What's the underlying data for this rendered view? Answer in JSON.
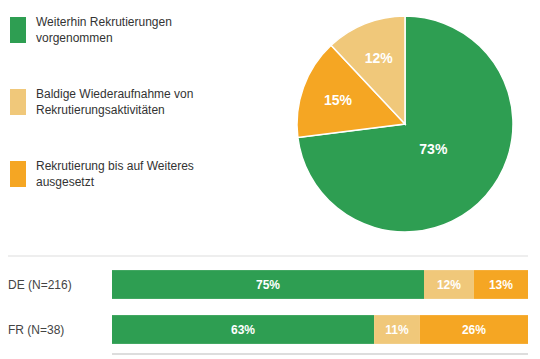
{
  "chart_data": [
    {
      "type": "pie",
      "values": [
        73,
        15,
        12
      ],
      "value_labels": [
        "73%",
        "15%",
        "12%"
      ],
      "colors": [
        "#2e9e52",
        "#f5a623",
        "#f0c87a"
      ],
      "data_labels": true
    },
    {
      "type": "bar",
      "orientation": "horizontal",
      "stacked": true,
      "categories": [
        "DE (N=216)",
        "FR (N=38)"
      ],
      "series": [
        {
          "name": "Weiterhin Rekrutierungen\nvorgenommen",
          "color": "#2e9e52",
          "values": [
            75,
            63
          ],
          "value_labels": [
            "75%",
            "63%"
          ]
        },
        {
          "name": "Baldige Wiederaufnahme von\nRekrutierungsaktivitäten",
          "color": "#f0c87a",
          "values": [
            12,
            11
          ],
          "value_labels": [
            "12%",
            "11%"
          ]
        },
        {
          "name": "Rekrutierung bis auf Weiteres\nausgesetzt",
          "color": "#f5a623",
          "values": [
            13,
            26
          ],
          "value_labels": [
            "13%",
            "26%"
          ]
        }
      ],
      "xlim": [
        0,
        100
      ],
      "tick_labels": "y",
      "data_labels": true,
      "legend": "upper left"
    }
  ]
}
